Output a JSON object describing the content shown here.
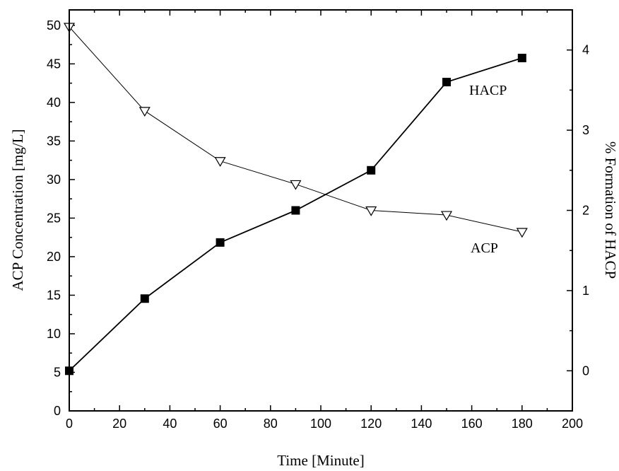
{
  "chart_data": {
    "type": "line",
    "xlabel": "Time [Minute]",
    "ylabel_left": "ACP Concentration [mg/L]",
    "ylabel_right": "% Formation of HACP",
    "xlim": [
      0,
      200
    ],
    "ylim_left": [
      0,
      52
    ],
    "ylim_right": [
      -0.5,
      4.5
    ],
    "x_ticks": [
      0,
      20,
      40,
      60,
      80,
      100,
      120,
      140,
      160,
      180,
      200
    ],
    "y_left_ticks": [
      0,
      5,
      10,
      15,
      20,
      25,
      30,
      35,
      40,
      45,
      50
    ],
    "y_right_ticks": [
      0,
      1,
      2,
      3,
      4
    ],
    "grid": false,
    "legend": "none",
    "series": [
      {
        "name": "ACP",
        "axis": "left",
        "marker": "open-down-triangle",
        "x": [
          0,
          30,
          60,
          90,
          120,
          150,
          180
        ],
        "y": [
          49.8,
          38.9,
          32.4,
          29.4,
          26.0,
          25.4,
          23.2
        ]
      },
      {
        "name": "HACP",
        "axis": "right",
        "marker": "filled-square",
        "x": [
          0,
          30,
          60,
          90,
          120,
          150,
          180
        ],
        "y": [
          0.0,
          0.9,
          1.6,
          2.0,
          2.5,
          3.6,
          3.9
        ]
      }
    ]
  }
}
